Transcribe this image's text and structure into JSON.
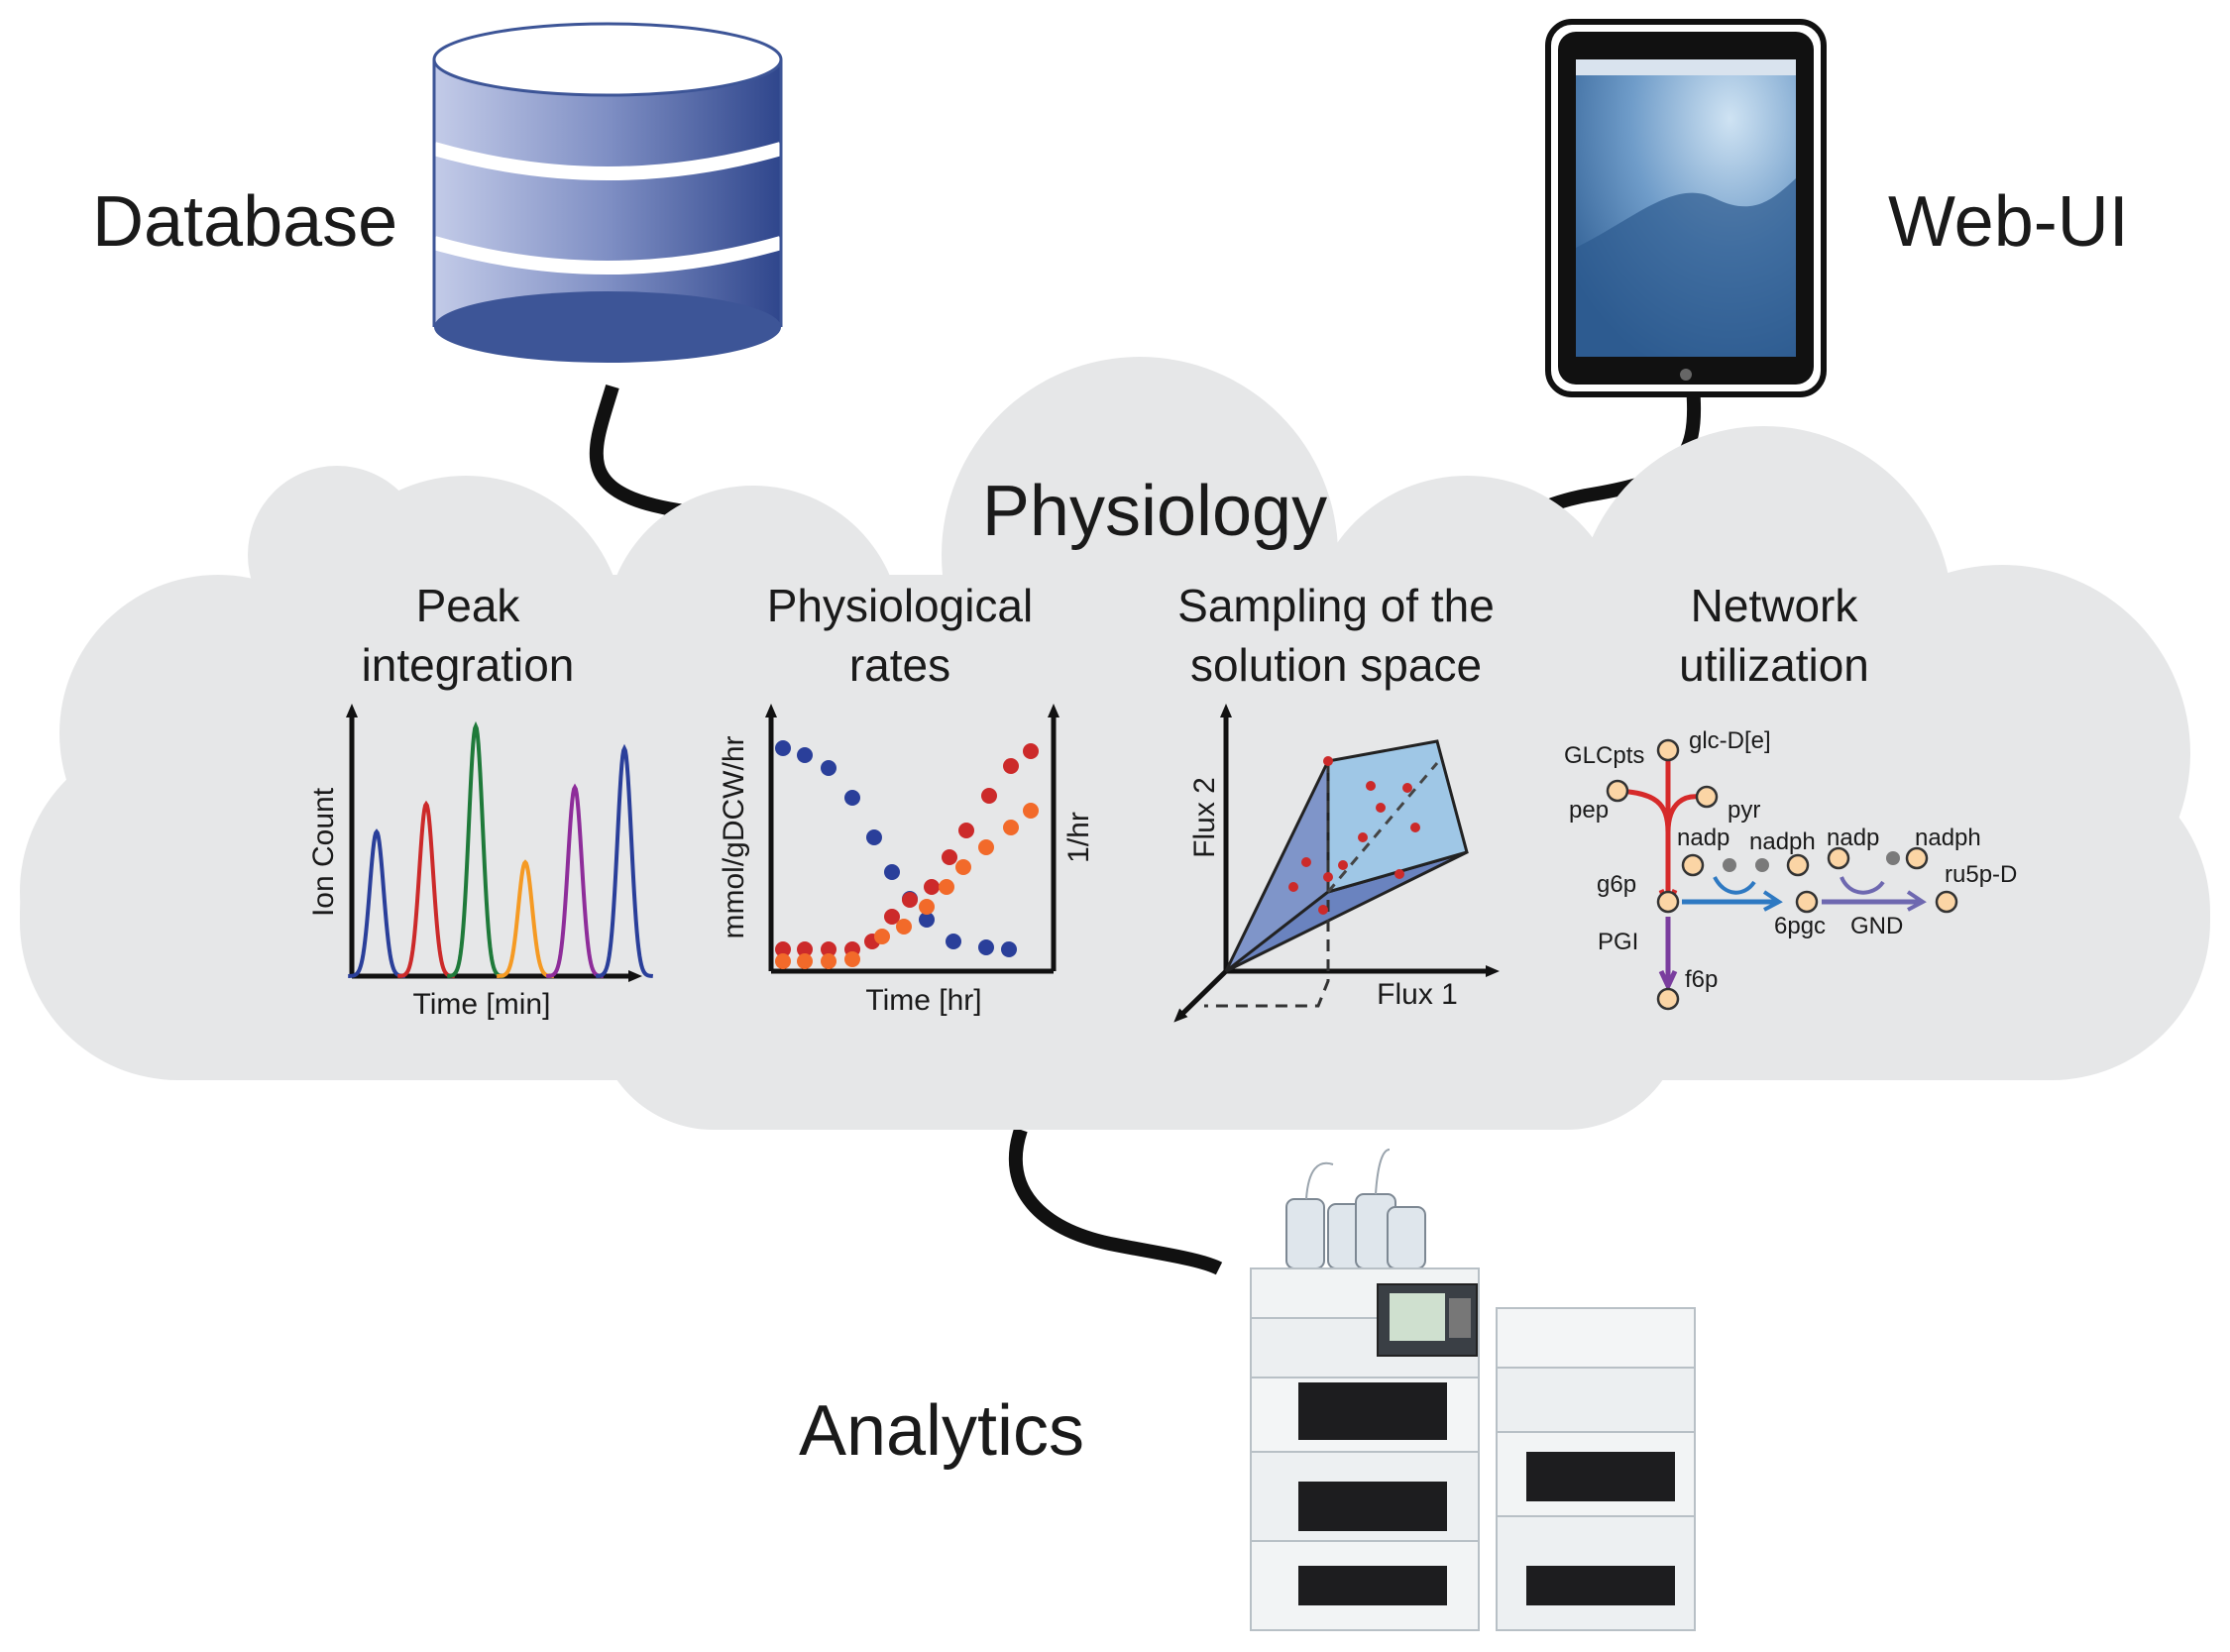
{
  "labels": {
    "database": "Database",
    "webui": "Web-UI",
    "physiology": "Physiology",
    "analytics": "Analytics"
  },
  "panels": {
    "peak": {
      "title_line1": "Peak",
      "title_line2": "integration",
      "xlabel": "Time [min]",
      "ylabel": "Ion Count",
      "peak_heights": [
        0.52,
        0.62,
        0.9,
        0.41,
        0.68,
        0.82
      ],
      "peak_colors": [
        "#2a3f9a",
        "#cc2a2a",
        "#1f7a3a",
        "#f59a23",
        "#8e2d9a",
        "#2a3f9a"
      ]
    },
    "rates": {
      "title_line1": "Physiological",
      "title_line2": "rates",
      "xlabel": "Time [hr]",
      "ylabel_left": "mmol/gDCW/hr",
      "ylabel_right": "1/hr"
    },
    "sampling": {
      "title_line1": "Sampling of the",
      "title_line2": "solution space",
      "xlabel": "Flux 1",
      "ylabel": "Flux 2"
    },
    "network": {
      "title_line1": "Network",
      "title_line2": "utilization",
      "nodes": {
        "glcpts": "GLCpts",
        "glc": "glc-D[e]",
        "pep": "pep",
        "pyr": "pyr",
        "nadp1": "nadp",
        "nadph1": "nadph",
        "nadp2": "nadp",
        "nadph2": "nadph",
        "ru5p": "ru5p-D",
        "g6p": "g6p",
        "pgc": "6pgc",
        "gnd": "GND",
        "pgi": "PGI",
        "f6p": "f6p"
      }
    }
  },
  "colors": {
    "cloud": "#e6e7e8",
    "db_dark": "#3d5597",
    "db_light": "#b3bde0",
    "red": "#cc2a2a",
    "blue": "#2a3f9a",
    "orange": "#f26a2a",
    "node_fill": "#fbd5a5"
  }
}
